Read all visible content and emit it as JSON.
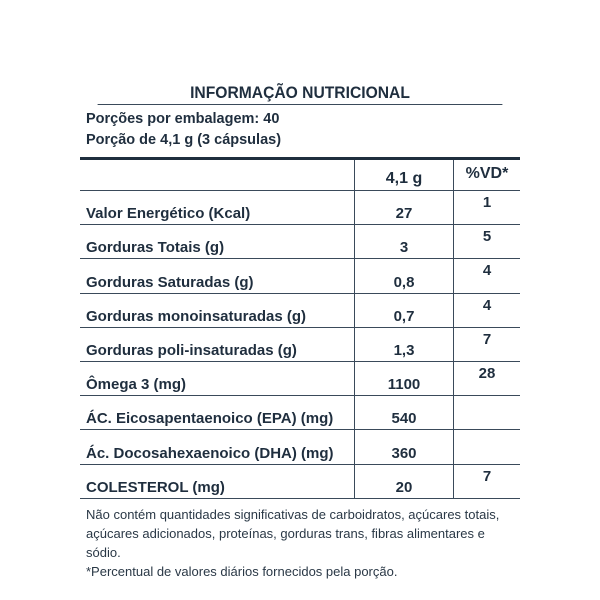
{
  "title": "INFORMAÇÃO NUTRICIONAL",
  "portions": [
    "Porções por embalagem: 40",
    "Porção de 4,1 g (3 cápsulas)"
  ],
  "header": {
    "name": "",
    "value": "4,1 g",
    "vd": "%VD*"
  },
  "rows": [
    {
      "name": "Valor Energético (Kcal)",
      "value": "27",
      "vd": "1"
    },
    {
      "name": "Gorduras Totais (g)",
      "value": "3",
      "vd": "5"
    },
    {
      "name": "Gorduras Saturadas (g)",
      "value": "0,8",
      "vd": "4"
    },
    {
      "name": "Gorduras monoinsaturadas (g)",
      "value": "0,7",
      "vd": "4"
    },
    {
      "name": "Gorduras poli-insaturadas (g)",
      "value": "1,3",
      "vd": "7"
    },
    {
      "name": "Ômega 3 (mg)",
      "value": "1100",
      "vd": "28"
    },
    {
      "name": "ÁC. Eicosapentaenoico (EPA) (mg)",
      "value": "540",
      "vd": ""
    },
    {
      "name": "Ác. Docosahexaenoico (DHA) (mg)",
      "value": "360",
      "vd": ""
    },
    {
      "name": "COLESTEROL (mg)",
      "value": "20",
      "vd": "7"
    }
  ],
  "footnotes": [
    "Não contém quantidades significativas de carboidratos, açúcares totais,",
    "açúcares adicionados, proteínas, gorduras trans, fibras alimentares e sódio.",
    "*Percentual de valores diários fornecidos pela porção."
  ]
}
